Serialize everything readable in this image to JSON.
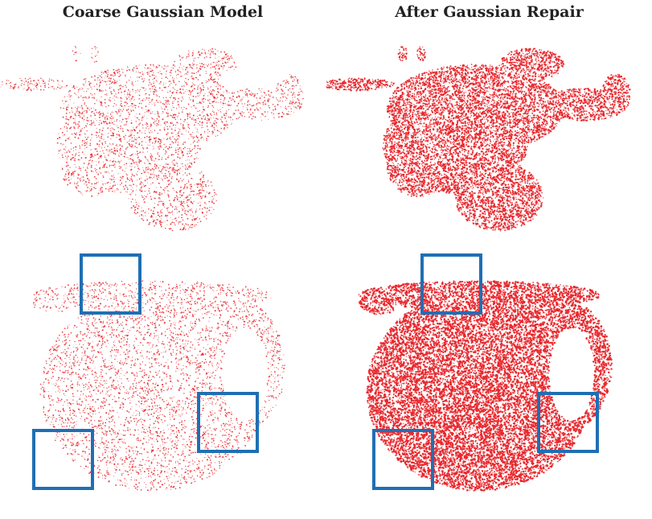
{
  "figure": {
    "left_title": "Coarse Gaussian Model",
    "right_title": "After Gaussian Repair"
  },
  "colors": {
    "points": "#e8262b",
    "highlight_box": "#1f6fb4"
  },
  "panels": [
    {
      "id": "coarse-elephant",
      "subject": "elephant point cloud",
      "density": "sparse"
    },
    {
      "id": "repaired-elephant",
      "subject": "elephant point cloud",
      "density": "dense"
    },
    {
      "id": "coarse-pitcher",
      "subject": "pitcher point cloud",
      "density": "sparse",
      "highlight_boxes": 3
    },
    {
      "id": "repaired-pitcher",
      "subject": "pitcher point cloud",
      "density": "dense",
      "highlight_boxes": 3
    }
  ]
}
